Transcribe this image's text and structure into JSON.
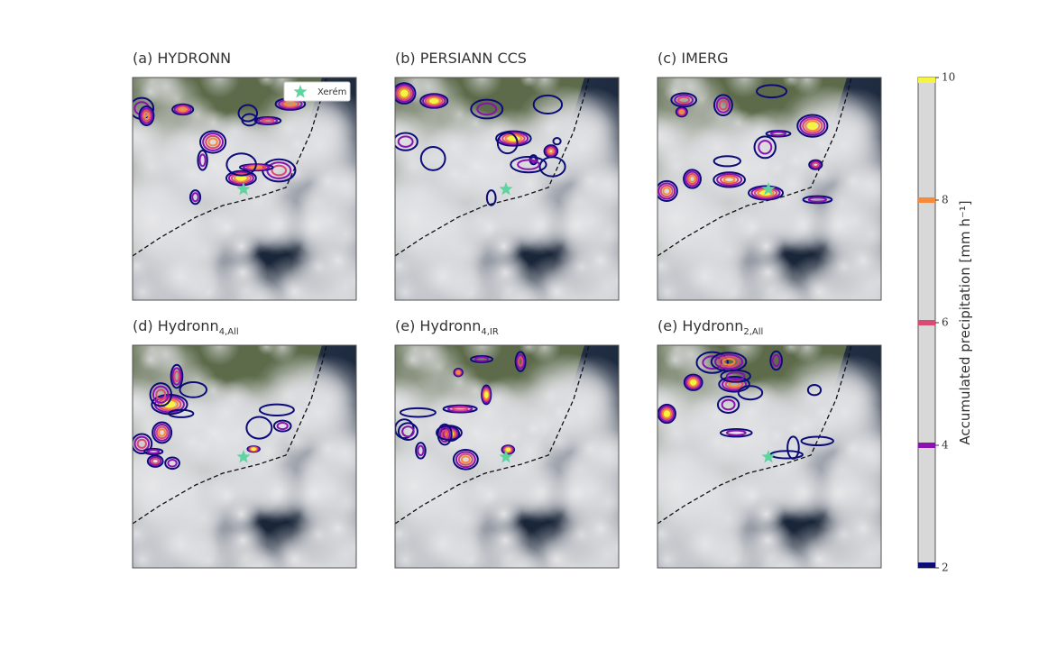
{
  "panels": [
    {
      "title": "(a) HYDRONN"
    },
    {
      "title": "(b) PERSIANN CCS"
    },
    {
      "title": "(c) IMERG"
    },
    {
      "title": "(d) Hydronn",
      "subscript": "4,All"
    },
    {
      "title": "(e) Hydronn",
      "subscript": "4,IR"
    },
    {
      "title": "(e) Hydronn",
      "subscript": "2,All"
    }
  ],
  "legend": {
    "label": "Xerém",
    "color": "#5fd3a0"
  },
  "colorbar": {
    "label": "Accumulated precipitation",
    "unit": "[mm h⁻¹]",
    "lim": [
      2,
      10
    ],
    "ticks": [
      2,
      4,
      6,
      8,
      10
    ],
    "colors": [
      "#0c0c78",
      "#8a12b0",
      "#d84b72",
      "#f58a3a",
      "#f4f441"
    ]
  }
}
